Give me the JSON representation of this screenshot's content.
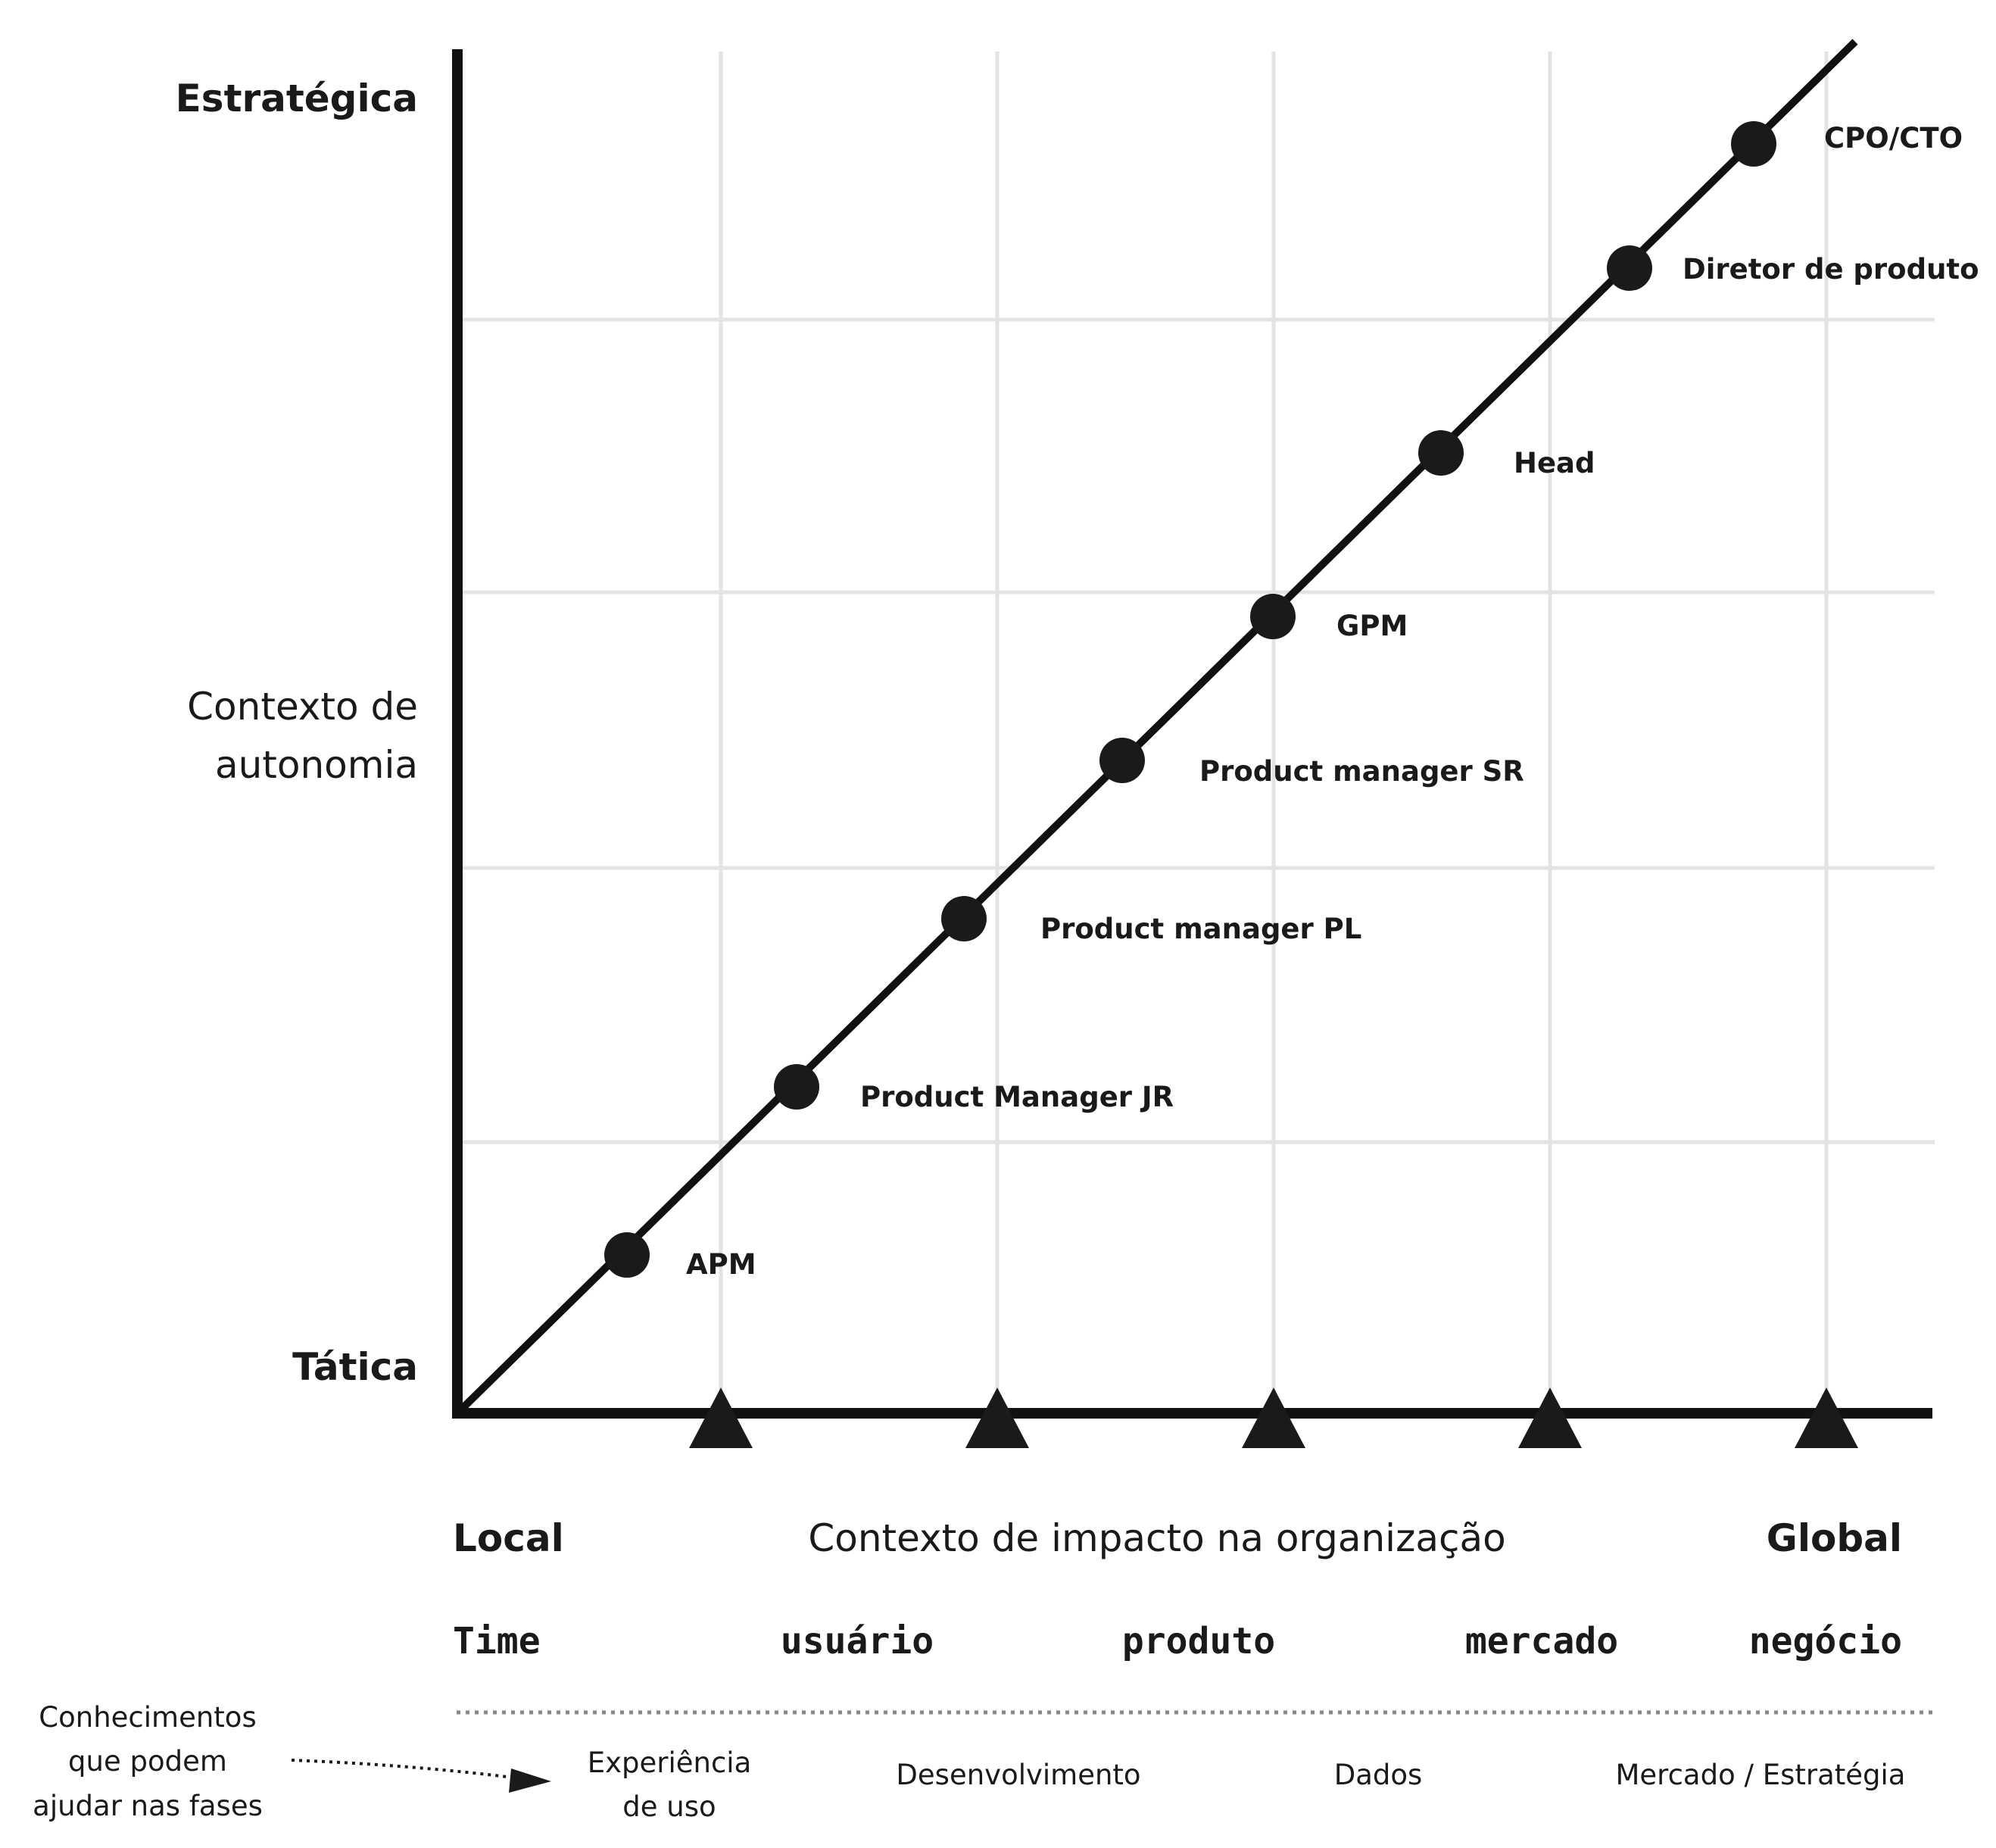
{
  "y_axis": {
    "top_label": "Estratégica",
    "bottom_label": "Tática",
    "title_line1": "Contexto de",
    "title_line2": "autonomia"
  },
  "x_axis": {
    "left_label": "Local",
    "right_label": "Global",
    "title": "Contexto de impacto na organização"
  },
  "scopes": [
    "Time",
    "usuário",
    "produto",
    "mercado",
    "negócio"
  ],
  "roles": [
    "APM",
    "Product Manager JR",
    "Product manager PL",
    "Product manager SR",
    "GPM",
    "Head",
    "Diretor de produto",
    "CPO/CTO"
  ],
  "knowledge": {
    "caption_line1": "Conhecimentos",
    "caption_line2": "que podem",
    "caption_line3": "ajudar nas fases",
    "items": [
      {
        "line1": "Experiência",
        "line2": "de uso"
      },
      {
        "line1": "Desenvolvimento",
        "line2": ""
      },
      {
        "line1": "Dados",
        "line2": ""
      },
      {
        "line1": "Mercado / Estratégia",
        "line2": ""
      }
    ]
  },
  "colors": {
    "ink": "#1a1a1a",
    "grid": "#e3e3e3",
    "background": "#ffffff"
  }
}
